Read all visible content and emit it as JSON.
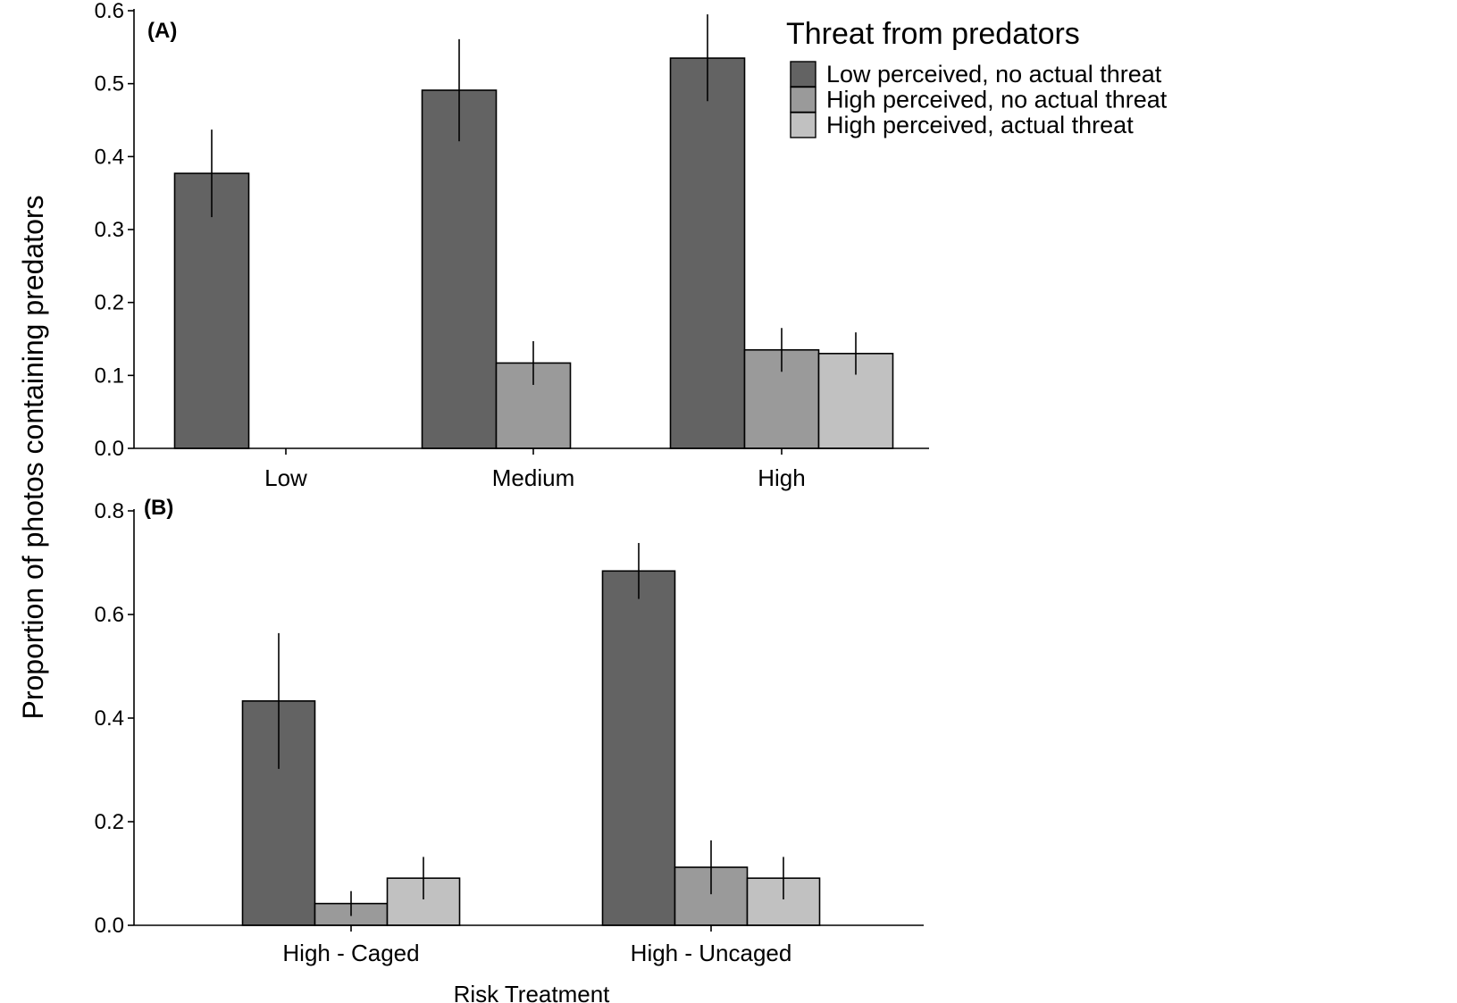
{
  "chart_data": {
    "type": "bar",
    "ylabel": "Proportion of photos containing predators",
    "legend": {
      "title": "Threat from predators",
      "placement": "top-right",
      "entries": [
        {
          "label": "Low perceived, no actual threat",
          "color": "#636363"
        },
        {
          "label": "High perceived, no actual threat",
          "color": "#9a9a9a"
        },
        {
          "label": "High perceived, actual threat",
          "color": "#c1c1c1"
        }
      ]
    },
    "colors": [
      "#636363",
      "#9a9a9a",
      "#c1c1c1"
    ],
    "panels": [
      {
        "label": "(A)",
        "xlabel": "",
        "categories": [
          "Low",
          "Medium",
          "High"
        ],
        "ylim": [
          0,
          0.6
        ],
        "yticks": [
          0.0,
          0.1,
          0.2,
          0.3,
          0.4,
          0.5,
          0.6
        ],
        "ytick_labels": [
          "0.0",
          "0.1",
          "0.2",
          "0.3",
          "0.4",
          "0.5",
          "0.6"
        ],
        "series": [
          {
            "name": "Low perceived, no actual threat",
            "values": [
              0.377,
              0.491,
              0.535
            ],
            "err_low": [
              0.317,
              0.421,
              0.476
            ],
            "err_high": [
              0.437,
              0.561,
              0.595
            ]
          },
          {
            "name": "High perceived, no actual threat",
            "values": [
              null,
              0.117,
              0.135
            ],
            "err_low": [
              null,
              0.087,
              0.105
            ],
            "err_high": [
              null,
              0.147,
              0.165
            ]
          },
          {
            "name": "High perceived, actual threat",
            "values": [
              null,
              null,
              0.13
            ],
            "err_low": [
              null,
              null,
              0.101
            ],
            "err_high": [
              null,
              null,
              0.159
            ]
          }
        ]
      },
      {
        "label": "(B)",
        "xlabel": "Risk Treatment",
        "categories": [
          "High - Caged",
          "High - Uncaged"
        ],
        "ylim": [
          0,
          0.8
        ],
        "yticks": [
          0.0,
          0.2,
          0.4,
          0.6,
          0.8
        ],
        "ytick_labels": [
          "0.0",
          "0.2",
          "0.4",
          "0.6",
          "0.8"
        ],
        "series": [
          {
            "name": "Low perceived, no actual threat",
            "values": [
              0.433,
              0.684
            ],
            "err_low": [
              0.302,
              0.63
            ],
            "err_high": [
              0.564,
              0.738
            ]
          },
          {
            "name": "High perceived, no actual threat",
            "values": [
              0.042,
              0.112
            ],
            "err_low": [
              0.018,
              0.06
            ],
            "err_high": [
              0.066,
              0.164
            ]
          },
          {
            "name": "High perceived, actual threat",
            "values": [
              0.091,
              0.091
            ],
            "err_low": [
              0.05,
              0.05
            ],
            "err_high": [
              0.132,
              0.132
            ]
          }
        ]
      }
    ]
  }
}
